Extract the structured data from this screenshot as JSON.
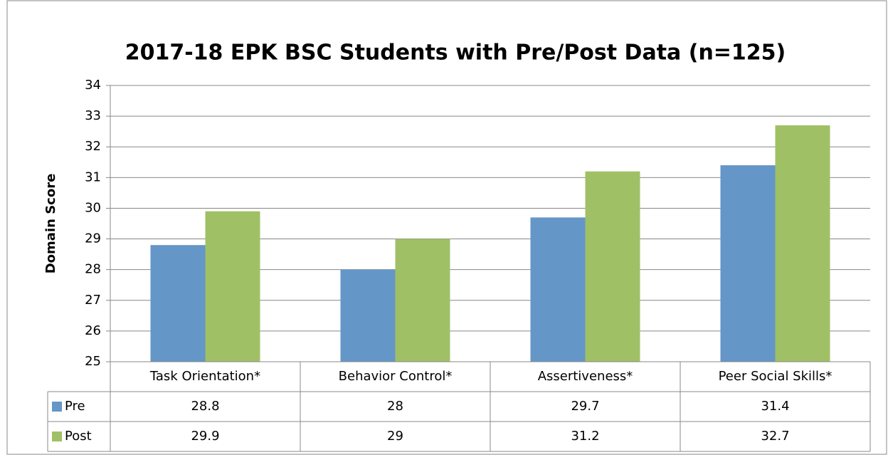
{
  "chart_data": {
    "type": "bar",
    "title": "2017-18 EPK BSC Students with Pre/Post Data (n=125)",
    "y_label": "Domain Score",
    "categories": [
      "Task Orientation*",
      "Behavior Control*",
      "Assertiveness*",
      "Peer Social Skills*"
    ],
    "series": [
      {
        "name": "Pre",
        "color": "#6496c8",
        "values": [
          28.8,
          28,
          29.7,
          31.4
        ]
      },
      {
        "name": "Post",
        "color": "#a0c066",
        "values": [
          29.9,
          29,
          31.2,
          32.7
        ]
      }
    ],
    "ylim": [
      25,
      34
    ],
    "yticks": [
      25,
      26,
      27,
      28,
      29,
      30,
      31,
      32,
      33,
      34
    ],
    "grid": true
  }
}
